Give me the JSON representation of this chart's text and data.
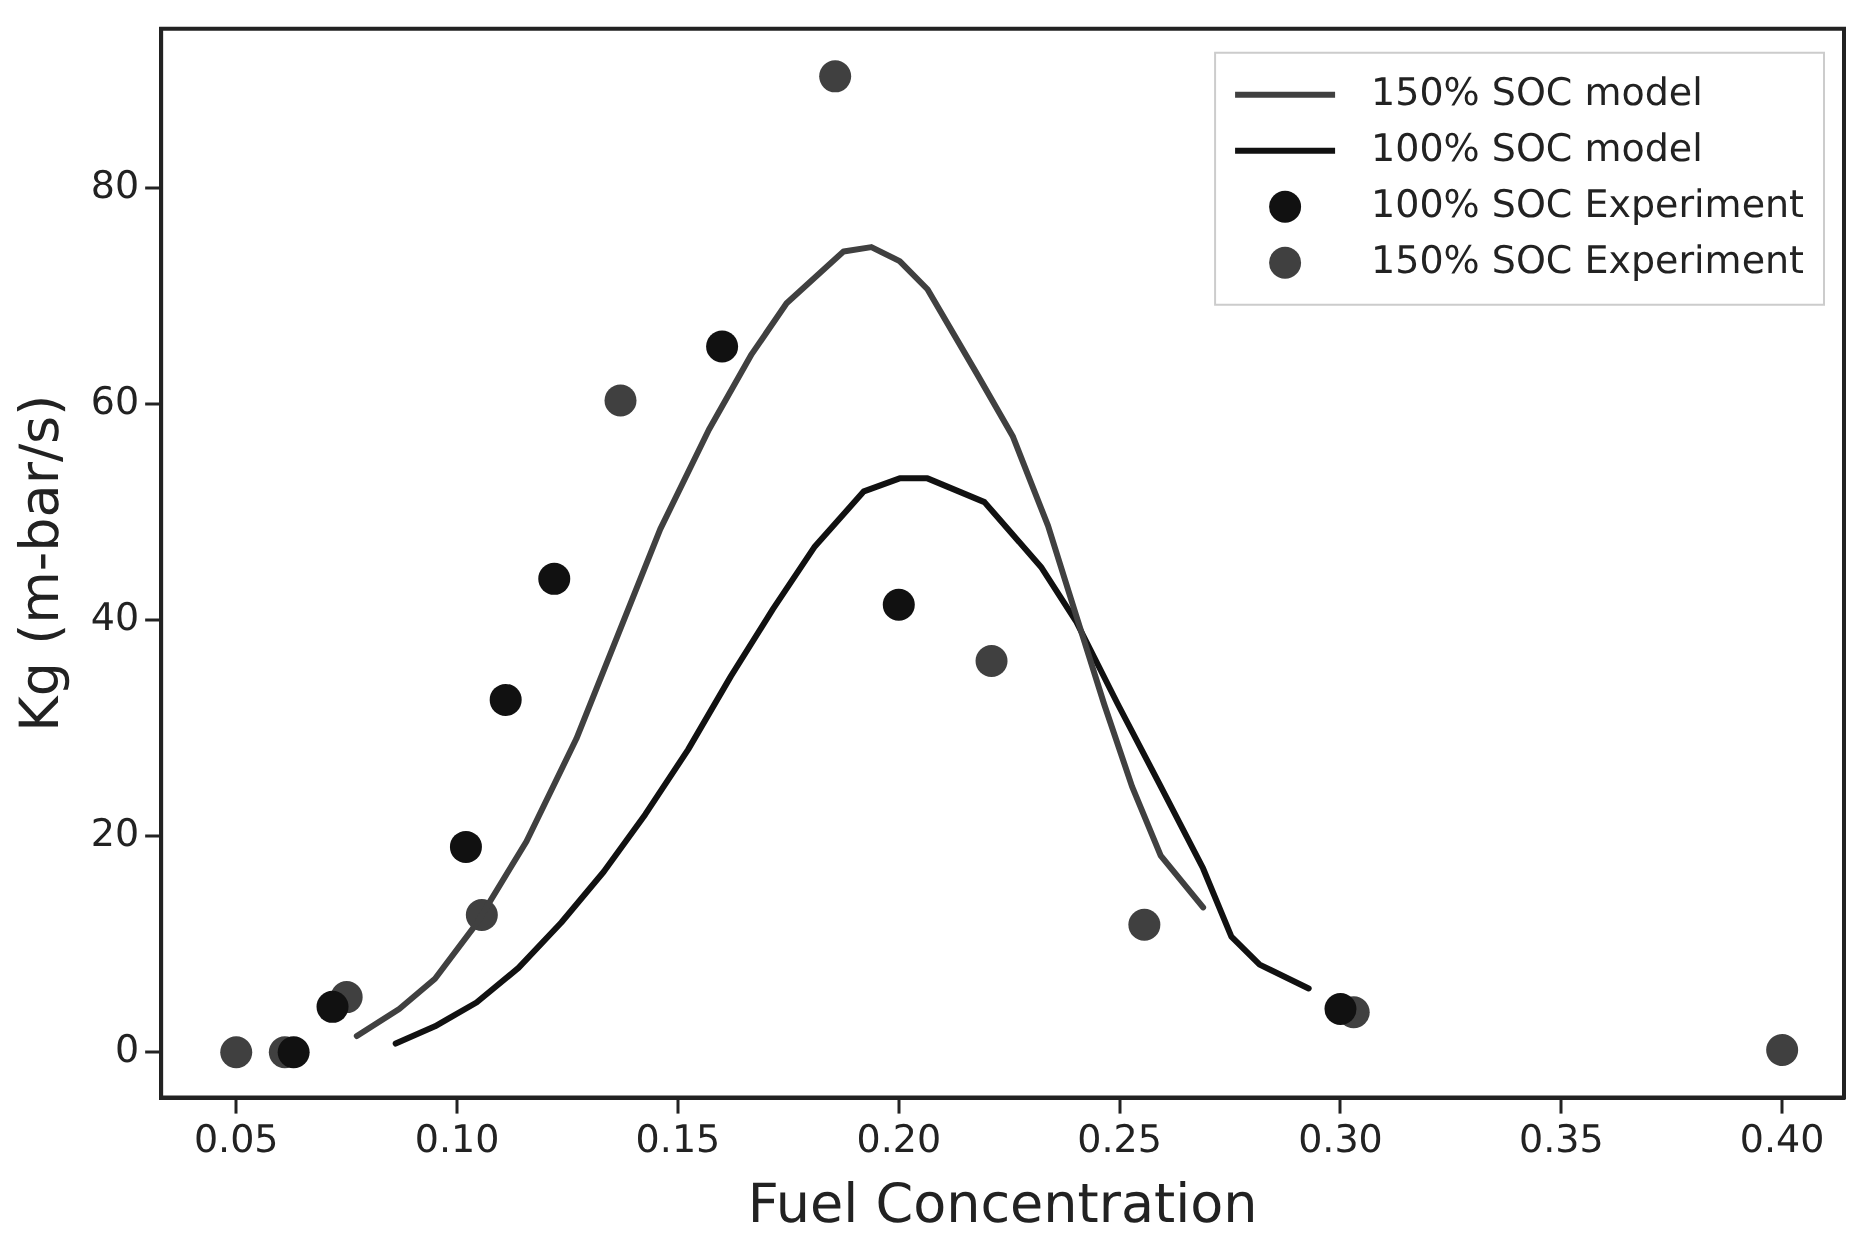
{
  "chart_data": {
    "type": "scatter",
    "xlabel": "Fuel Concentration",
    "ylabel": "Kg (m-bar/s)",
    "xlim": [
      0.033,
      0.414
    ],
    "ylim": [
      -4.2,
      94.7
    ],
    "xticks": [
      {
        "value": 0.05,
        "label": "0.05"
      },
      {
        "value": 0.1,
        "label": "0.10"
      },
      {
        "value": 0.15,
        "label": "0.15"
      },
      {
        "value": 0.2,
        "label": "0.20"
      },
      {
        "value": 0.25,
        "label": "0.25"
      },
      {
        "value": 0.3,
        "label": "0.30"
      },
      {
        "value": 0.35,
        "label": "0.35"
      },
      {
        "value": 0.4,
        "label": "0.40"
      }
    ],
    "yticks": [
      0,
      20,
      40,
      60,
      80
    ],
    "grid": false,
    "legend": "top right",
    "line_style": "solid",
    "series": [
      {
        "name": "150% SOC model",
        "type": "line",
        "marker": "none",
        "color": "#404040",
        "x": [
          0.0773,
          0.0869,
          0.095,
          0.1044,
          0.1157,
          0.127,
          0.1364,
          0.146,
          0.157,
          0.1667,
          0.1746,
          0.1875,
          0.1938,
          0.2002,
          0.2065,
          0.2178,
          0.2258,
          0.2338,
          0.2401,
          0.2465,
          0.2528,
          0.2593,
          0.2689
        ],
        "values": [
          1.5,
          4,
          6.8,
          11.9,
          19.5,
          29,
          38.6,
          48.4,
          57.6,
          64.6,
          69.3,
          74.1,
          74.5,
          73.2,
          70.6,
          62.7,
          57,
          48.7,
          40.5,
          32.2,
          24.6,
          18.2,
          13.4
        ]
      },
      {
        "name": "100% SOC model",
        "type": "line",
        "marker": "none",
        "color": "#111111",
        "x": [
          0.0861,
          0.095,
          0.1044,
          0.1139,
          0.1236,
          0.1332,
          0.1426,
          0.1523,
          0.162,
          0.1715,
          0.181,
          0.1921,
          0.2002,
          0.2065,
          0.2194,
          0.2322,
          0.2401,
          0.2496,
          0.2593,
          0.2689,
          0.2753,
          0.2817,
          0.2928
        ],
        "values": [
          0.8,
          2.4,
          4.6,
          7.8,
          12,
          16.7,
          22,
          28,
          34.8,
          41,
          46.8,
          51.9,
          53.1,
          53.1,
          50.9,
          44.9,
          39.9,
          32.2,
          24.6,
          17,
          10.7,
          8.1,
          5.9
        ]
      },
      {
        "name": "100% SOC Experiment",
        "type": "scatter",
        "marker": "circle",
        "color": "#111111",
        "x": [
          0.063,
          0.0718,
          0.102,
          0.111,
          0.122,
          0.16,
          0.2,
          0.3
        ],
        "values": [
          0,
          4.2,
          19,
          32.6,
          43.8,
          65.3,
          41.4,
          4
        ]
      },
      {
        "name": "150% SOC Experiment",
        "type": "scatter",
        "marker": "circle",
        "color": "#404040",
        "x": [
          0.05,
          0.061,
          0.075,
          0.1056,
          0.137,
          0.1856,
          0.221,
          0.2556,
          0.303,
          0.4
        ],
        "values": [
          0,
          0,
          5.1,
          12.7,
          60.3,
          90.3,
          36.2,
          11.8,
          3.7,
          0.2
        ]
      }
    ]
  }
}
